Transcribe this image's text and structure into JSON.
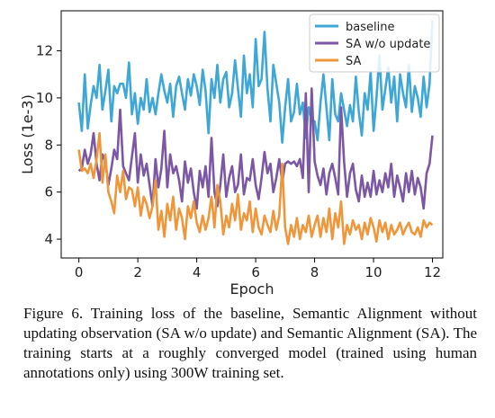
{
  "chart_data": {
    "type": "line",
    "xlabel": "Epoch",
    "ylabel": "Loss (1e-3)",
    "xlim": [
      -0.6,
      12.35
    ],
    "ylim": [
      3.2,
      13.7
    ],
    "xticks": [
      0,
      2,
      4,
      6,
      8,
      10,
      12
    ],
    "yticks": [
      4,
      6,
      8,
      10,
      12
    ],
    "grid": false,
    "legend_position": "top-right",
    "series": [
      {
        "name": "baseline",
        "color": "#3fa7d6",
        "x": [
          0.0,
          0.1,
          0.2,
          0.3,
          0.4,
          0.5,
          0.6,
          0.7,
          0.8,
          0.9,
          1.0,
          1.1,
          1.2,
          1.3,
          1.4,
          1.5,
          1.6,
          1.7,
          1.8,
          1.9,
          2.0,
          2.1,
          2.2,
          2.3,
          2.4,
          2.5,
          2.6,
          2.7,
          2.8,
          2.9,
          3.0,
          3.1,
          3.2,
          3.3,
          3.4,
          3.5,
          3.6,
          3.7,
          3.8,
          3.9,
          4.0,
          4.1,
          4.2,
          4.3,
          4.4,
          4.5,
          4.6,
          4.7,
          4.8,
          4.9,
          5.0,
          5.1,
          5.2,
          5.3,
          5.4,
          5.5,
          5.6,
          5.7,
          5.8,
          5.9,
          6.0,
          6.1,
          6.2,
          6.3,
          6.4,
          6.5,
          6.6,
          6.7,
          6.8,
          6.9,
          7.0,
          7.1,
          7.2,
          7.3,
          7.4,
          7.5,
          7.6,
          7.7,
          7.8,
          7.9,
          8.0,
          8.1,
          8.2,
          8.3,
          8.4,
          8.5,
          8.6,
          8.7,
          8.8,
          8.9,
          9.0,
          9.1,
          9.2,
          9.3,
          9.4,
          9.5,
          9.6,
          9.7,
          9.8,
          9.9,
          10.0,
          10.1,
          10.2,
          10.3,
          10.4,
          10.5,
          10.6,
          10.7,
          10.8,
          10.9,
          11.0,
          11.1,
          11.2,
          11.3,
          11.4,
          11.5,
          11.6,
          11.7,
          11.8,
          11.9,
          12.0
        ],
        "y": [
          9.8,
          8.6,
          11.0,
          8.7,
          9.7,
          10.5,
          10.0,
          11.4,
          9.5,
          10.3,
          11.2,
          9.0,
          10.5,
          10.2,
          10.6,
          10.6,
          10.0,
          11.5,
          9.3,
          10.2,
          8.9,
          10.0,
          9.5,
          10.8,
          9.4,
          10.0,
          9.3,
          10.2,
          11.0,
          10.3,
          9.8,
          10.6,
          9.2,
          10.5,
          10.9,
          10.2,
          9.5,
          10.8,
          10.1,
          11.0,
          10.5,
          9.7,
          11.2,
          10.3,
          8.5,
          10.8,
          10.0,
          11.4,
          9.8,
          10.8,
          11.1,
          9.6,
          10.2,
          11.6,
          10.4,
          9.2,
          11.8,
          10.2,
          11.0,
          9.6,
          12.5,
          10.5,
          10.8,
          12.8,
          10.4,
          9.0,
          11.4,
          10.6,
          9.8,
          8.1,
          9.6,
          10.8,
          9.0,
          9.4,
          10.6,
          9.3,
          9.8,
          8.3,
          9.6,
          9.1,
          9.0,
          8.2,
          9.8,
          11.0,
          9.6,
          8.2,
          10.8,
          9.3,
          9.0,
          10.2,
          9.5,
          8.8,
          9.7,
          9.0,
          10.9,
          9.4,
          8.4,
          10.2,
          9.5,
          11.1,
          8.6,
          10.0,
          11.8,
          9.5,
          10.4,
          11.3,
          9.8,
          10.9,
          9.0,
          11.0,
          10.2,
          9.6,
          11.4,
          9.4,
          10.5,
          10.0,
          9.2,
          10.9,
          9.6,
          10.6,
          13.3
        ]
      },
      {
        "name": "SA w/o update",
        "color": "#7b57a4",
        "x": [
          0.0,
          0.1,
          0.2,
          0.3,
          0.4,
          0.5,
          0.6,
          0.7,
          0.8,
          0.9,
          1.0,
          1.1,
          1.2,
          1.3,
          1.4,
          1.5,
          1.6,
          1.7,
          1.8,
          1.9,
          2.0,
          2.1,
          2.2,
          2.3,
          2.4,
          2.5,
          2.6,
          2.7,
          2.8,
          2.9,
          3.0,
          3.1,
          3.2,
          3.3,
          3.4,
          3.5,
          3.6,
          3.7,
          3.8,
          3.9,
          4.0,
          4.1,
          4.2,
          4.3,
          4.4,
          4.5,
          4.6,
          4.7,
          4.8,
          4.9,
          5.0,
          5.1,
          5.2,
          5.3,
          5.4,
          5.5,
          5.6,
          5.7,
          5.8,
          5.9,
          6.0,
          6.1,
          6.2,
          6.3,
          6.4,
          6.5,
          6.6,
          6.7,
          6.8,
          6.9,
          7.0,
          7.1,
          7.2,
          7.3,
          7.4,
          7.5,
          7.6,
          7.7,
          7.8,
          7.9,
          8.0,
          8.1,
          8.2,
          8.3,
          8.4,
          8.5,
          8.6,
          8.7,
          8.8,
          8.9,
          9.0,
          9.1,
          9.2,
          9.3,
          9.4,
          9.5,
          9.6,
          9.7,
          9.8,
          9.9,
          10.0,
          10.1,
          10.2,
          10.3,
          10.4,
          10.5,
          10.6,
          10.7,
          10.8,
          10.9,
          11.0,
          11.1,
          11.2,
          11.3,
          11.4,
          11.5,
          11.6,
          11.7,
          11.8,
          11.9,
          12.0
        ],
        "y": [
          6.9,
          7.0,
          7.8,
          7.2,
          7.6,
          8.5,
          7.2,
          6.5,
          7.6,
          7.3,
          6.3,
          7.0,
          7.8,
          7.4,
          9.5,
          7.1,
          6.8,
          6.5,
          7.5,
          8.5,
          6.4,
          7.6,
          6.7,
          7.2,
          6.3,
          5.4,
          7.4,
          6.2,
          7.0,
          8.6,
          6.2,
          7.6,
          6.8,
          7.1,
          6.5,
          5.6,
          7.3,
          6.4,
          7.0,
          6.0,
          5.3,
          6.9,
          6.2,
          7.1,
          5.8,
          8.3,
          6.0,
          5.4,
          6.3,
          7.6,
          5.8,
          6.6,
          7.1,
          6.0,
          6.3,
          7.6,
          5.9,
          6.6,
          6.5,
          7.4,
          6.3,
          5.7,
          6.6,
          7.7,
          6.8,
          7.2,
          6.0,
          6.6,
          7.4,
          6.4,
          7.2,
          7.3,
          7.2,
          7.3,
          7.1,
          7.4,
          6.6,
          10.2,
          6.0,
          10.4,
          7.3,
          6.7,
          6.3,
          7.0,
          5.9,
          6.8,
          7.2,
          6.6,
          5.9,
          9.6,
          7.3,
          5.8,
          6.8,
          7.2,
          6.1,
          5.6,
          6.7,
          5.8,
          6.4,
          5.8,
          6.9,
          5.9,
          6.5,
          6.0,
          6.8,
          6.2,
          7.2,
          5.8,
          6.7,
          6.2,
          5.6,
          6.8,
          6.0,
          6.9,
          5.9,
          6.6,
          6.2,
          5.3,
          6.8,
          7.2,
          8.4
        ]
      },
      {
        "name": "SA",
        "color": "#f0963a",
        "x": [
          0.0,
          0.1,
          0.2,
          0.3,
          0.4,
          0.5,
          0.6,
          0.7,
          0.8,
          0.9,
          1.0,
          1.1,
          1.2,
          1.3,
          1.4,
          1.5,
          1.6,
          1.7,
          1.8,
          1.9,
          2.0,
          2.1,
          2.2,
          2.3,
          2.4,
          2.5,
          2.6,
          2.7,
          2.8,
          2.9,
          3.0,
          3.1,
          3.2,
          3.3,
          3.4,
          3.5,
          3.6,
          3.7,
          3.8,
          3.9,
          4.0,
          4.1,
          4.2,
          4.3,
          4.4,
          4.5,
          4.6,
          4.7,
          4.8,
          4.9,
          5.0,
          5.1,
          5.2,
          5.3,
          5.4,
          5.5,
          5.6,
          5.7,
          5.8,
          5.9,
          6.0,
          6.1,
          6.2,
          6.3,
          6.4,
          6.5,
          6.6,
          6.7,
          6.8,
          6.9,
          7.0,
          7.1,
          7.2,
          7.3,
          7.4,
          7.5,
          7.6,
          7.7,
          7.8,
          7.9,
          8.0,
          8.1,
          8.2,
          8.3,
          8.4,
          8.5,
          8.6,
          8.7,
          8.8,
          8.9,
          9.0,
          9.1,
          9.2,
          9.3,
          9.4,
          9.5,
          9.6,
          9.7,
          9.8,
          9.9,
          10.0,
          10.1,
          10.2,
          10.3,
          10.4,
          10.5,
          10.6,
          10.7,
          10.8,
          10.9,
          11.0,
          11.1,
          11.2,
          11.3,
          11.4,
          11.5,
          11.6,
          11.7,
          11.8,
          11.9,
          12.0
        ],
        "y": [
          7.8,
          6.9,
          7.0,
          6.8,
          7.2,
          6.6,
          7.4,
          8.5,
          6.4,
          7.6,
          6.0,
          5.6,
          5.1,
          6.7,
          6.0,
          6.9,
          5.7,
          6.2,
          6.1,
          5.4,
          6.2,
          5.0,
          5.8,
          5.5,
          4.9,
          5.4,
          6.5,
          4.4,
          5.2,
          4.1,
          5.5,
          4.8,
          5.8,
          4.4,
          5.3,
          4.9,
          4.0,
          5.4,
          4.9,
          5.6,
          4.7,
          4.3,
          5.0,
          4.4,
          4.9,
          5.8,
          4.5,
          6.3,
          5.6,
          4.2,
          5.0,
          4.5,
          5.5,
          4.8,
          5.9,
          4.4,
          5.1,
          4.8,
          5.6,
          4.3,
          5.3,
          4.5,
          4.2,
          5.0,
          4.6,
          4.3,
          5.2,
          4.4,
          5.0,
          7.2,
          4.5,
          3.8,
          4.6,
          4.1,
          4.9,
          4.0,
          4.6,
          4.3,
          5.0,
          4.1,
          4.6,
          5.0,
          4.1,
          4.9,
          4.3,
          5.3,
          4.0,
          5.1,
          4.5,
          5.6,
          3.8,
          4.6,
          4.2,
          4.8,
          4.4,
          4.6,
          4.0,
          4.7,
          4.2,
          4.9,
          4.5,
          3.9,
          4.8,
          4.3,
          4.7,
          4.0,
          4.6,
          4.2,
          4.4,
          4.7,
          4.2,
          4.5,
          4.7,
          4.3,
          4.2,
          4.5,
          4.1,
          4.8,
          4.5,
          4.7,
          4.6
        ]
      }
    ]
  },
  "caption": "Figure 6. Training loss of the baseline, Semantic Alignment without updating observation (SA w/o update) and Semantic Alignment (SA). The training starts at a roughly converged model (trained using human annotations only) using 300W training set."
}
